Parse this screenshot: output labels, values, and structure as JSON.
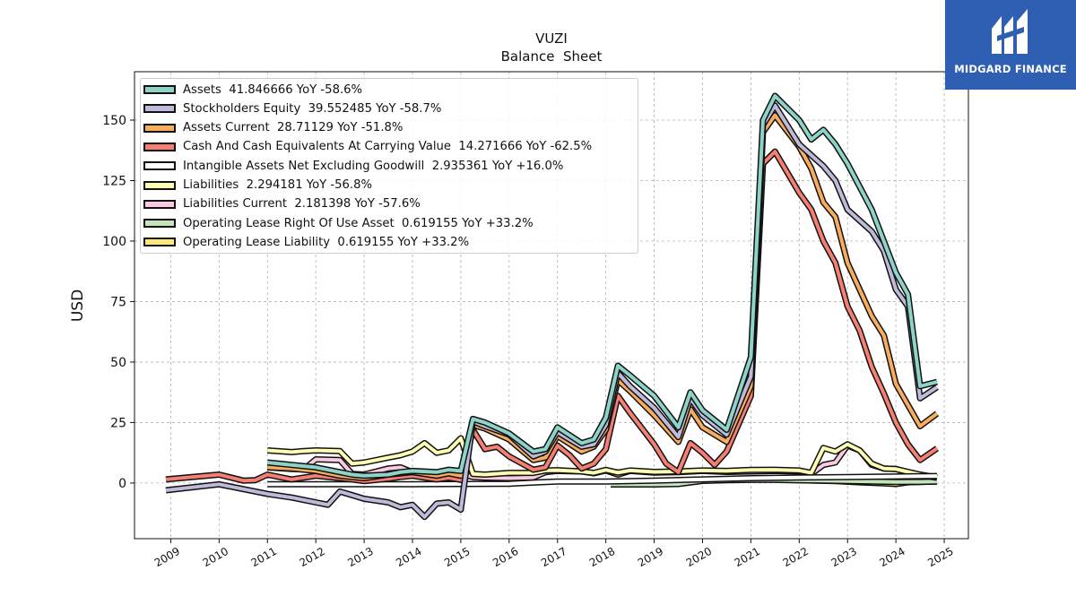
{
  "chart_data": {
    "type": "line",
    "title": "VUZI",
    "subtitle": "Balance  Sheet",
    "ylabel": "USD",
    "xlabel": "",
    "ylim": [
      -23,
      170
    ],
    "xlim": [
      2008.25,
      2025.5
    ],
    "yticks": [
      0,
      25,
      50,
      75,
      100,
      125,
      150
    ],
    "xticks": [
      "2009",
      "2010",
      "2011",
      "2012",
      "2013",
      "2014",
      "2015",
      "2016",
      "2017",
      "2018",
      "2019",
      "2020",
      "2021",
      "2022",
      "2023",
      "2024",
      "2025"
    ],
    "grid": true,
    "legend_position": "top-left",
    "series": [
      {
        "name": "Operating Lease Liability",
        "legend": "Operating Lease Liability  0.619155 YoY +33.2%",
        "color": "#ffe873",
        "x": [
          2019.0,
          2019.75,
          2020.5,
          2021.25,
          2022.0,
          2022.75,
          2023.25,
          2023.75,
          2024.0,
          2024.25,
          2024.85
        ],
        "y": [
          0.8,
          1.0,
          1.3,
          1.6,
          1.2,
          0.8,
          0.3,
          -0.1,
          -0.4,
          0.3,
          0.6
        ]
      },
      {
        "name": "Operating Lease Right Of Use Asset",
        "legend": "Operating Lease Right Of Use Asset  0.619155 YoY +33.2%",
        "color": "#c5e4bd",
        "x": [
          2018.1,
          2018.5,
          2019.0,
          2019.5,
          2020.0,
          2020.5,
          2021.0,
          2021.5,
          2022.0,
          2022.5,
          2023.0,
          2023.5,
          2024.0,
          2024.5,
          2024.85
        ],
        "y": [
          -0.6,
          -0.6,
          -0.6,
          -0.4,
          0.9,
          1.2,
          1.3,
          1.3,
          1.1,
          1.0,
          0.8,
          0.6,
          0.4,
          0.5,
          0.6
        ]
      },
      {
        "name": "Liabilities Current",
        "legend": "Liabilities Current  2.181398 YoY -57.6%",
        "color": "#fcc9e2",
        "x": [
          2011.0,
          2011.5,
          2011.75,
          2012.0,
          2012.5,
          2012.75,
          2013.0,
          2013.5,
          2013.75,
          2014.0,
          2014.5,
          2014.75,
          2015.0,
          2015.25,
          2015.5,
          2016.0,
          2016.5,
          2016.75,
          2017.0,
          2017.5,
          2017.75,
          2018.0,
          2018.25,
          2018.5,
          2019.0,
          2019.5,
          2020.0,
          2020.5,
          2021.0,
          2021.5,
          2022.0,
          2022.25,
          2022.5,
          2022.75,
          2023.0,
          2023.25,
          2023.5,
          2023.75,
          2024.0,
          2024.25,
          2024.5,
          2024.85
        ],
        "y": [
          6.5,
          5.8,
          5.6,
          9.8,
          9.5,
          3.8,
          3.5,
          6.0,
          6.5,
          4.5,
          4.2,
          4.0,
          3.8,
          2.5,
          2.2,
          2.0,
          2.3,
          4.5,
          5.0,
          4.8,
          4.0,
          5.2,
          3.5,
          5.0,
          4.3,
          4.5,
          5.0,
          4.6,
          4.8,
          5.0,
          4.8,
          3.8,
          7.5,
          8.5,
          15.5,
          13.5,
          7.5,
          6.0,
          5.8,
          4.5,
          3.3,
          2.2
        ]
      },
      {
        "name": "Liabilities",
        "legend": "Liabilities  2.294181 YoY -56.8%",
        "color": "#ffffb3",
        "x": [
          2011.0,
          2011.5,
          2011.75,
          2012.0,
          2012.5,
          2012.75,
          2013.0,
          2013.5,
          2013.75,
          2014.0,
          2014.25,
          2014.5,
          2014.75,
          2015.0,
          2015.25,
          2015.5,
          2016.0,
          2016.5,
          2016.75,
          2017.0,
          2017.5,
          2017.75,
          2018.0,
          2018.25,
          2018.5,
          2019.0,
          2019.5,
          2020.0,
          2020.5,
          2021.0,
          2021.5,
          2022.0,
          2022.25,
          2022.5,
          2022.75,
          2023.0,
          2023.25,
          2023.5,
          2023.75,
          2024.0,
          2024.25,
          2024.5,
          2024.85
        ],
        "y": [
          13.5,
          12.8,
          13.2,
          13.5,
          13.2,
          8.0,
          8.5,
          10.5,
          11.5,
          13.0,
          16.5,
          12.5,
          13.5,
          18.5,
          3.8,
          3.5,
          4.2,
          4.2,
          5.2,
          5.3,
          4.8,
          4.2,
          5.4,
          4.3,
          5.2,
          4.6,
          4.8,
          5.2,
          5.0,
          5.4,
          5.5,
          5.2,
          4.2,
          14.5,
          13.0,
          16.0,
          13.5,
          8.0,
          6.0,
          5.8,
          4.6,
          3.5,
          2.3
        ]
      },
      {
        "name": "Intangible Assets Net Excluding Goodwill",
        "legend": "Intangible Assets Net Excluding Goodwill  2.935361 YoY +16.0%",
        "color": "#ffffff",
        "x": [
          2011.0,
          2012.0,
          2013.0,
          2014.0,
          2015.0,
          2016.0,
          2016.5,
          2017.0,
          2018.0,
          2019.0,
          2020.0,
          2021.0,
          2022.0,
          2023.0,
          2024.0,
          2024.85
        ],
        "y": [
          -0.5,
          -0.5,
          -0.5,
          -0.5,
          -0.4,
          -0.3,
          0.2,
          0.6,
          0.6,
          1.0,
          1.5,
          2.0,
          2.3,
          2.5,
          2.7,
          2.9
        ]
      },
      {
        "name": "Cash And Cash Equivalents At Carrying Value",
        "legend": "Cash And Cash Equivalents At Carrying Value  14.271666 YoY -62.5%",
        "color": "#f47f72",
        "x": [
          2008.9,
          2010.0,
          2010.5,
          2010.75,
          2011.0,
          2011.5,
          2012.0,
          2012.5,
          2012.75,
          2013.0,
          2013.5,
          2013.75,
          2014.0,
          2014.5,
          2014.75,
          2015.0,
          2015.25,
          2015.5,
          2015.75,
          2016.0,
          2016.5,
          2016.75,
          2017.0,
          2017.25,
          2017.5,
          2017.75,
          2018.0,
          2018.25,
          2018.5,
          2019.0,
          2019.25,
          2019.5,
          2019.75,
          2020.0,
          2020.25,
          2020.5,
          2021.0,
          2021.25,
          2021.5,
          2022.0,
          2022.25,
          2022.5,
          2022.75,
          2023.0,
          2023.25,
          2023.5,
          2023.75,
          2024.0,
          2024.25,
          2024.5,
          2024.85
        ],
        "y": [
          1.5,
          3.5,
          1.0,
          1.2,
          3.5,
          1.5,
          3.0,
          2.0,
          1.5,
          0.8,
          1.8,
          2.5,
          3.0,
          1.5,
          2.2,
          1.3,
          22.0,
          14.0,
          15.0,
          11.0,
          5.5,
          6.5,
          15.5,
          11.5,
          6.0,
          8.0,
          14.0,
          36.0,
          29.0,
          16.0,
          8.0,
          4.5,
          16.5,
          12.5,
          7.5,
          13.0,
          36.0,
          132.0,
          137.0,
          120.0,
          113.0,
          100.0,
          91.0,
          73.0,
          63.0,
          48.0,
          37.0,
          25.0,
          16.0,
          9.5,
          14.3
        ]
      },
      {
        "name": "Assets Current",
        "legend": "Assets Current  28.71129 YoY -51.8%",
        "color": "#f8ad5e",
        "x": [
          2011.0,
          2011.5,
          2012.0,
          2012.5,
          2012.75,
          2013.0,
          2013.5,
          2013.75,
          2014.0,
          2014.5,
          2014.75,
          2015.0,
          2015.25,
          2015.5,
          2016.0,
          2016.5,
          2016.75,
          2017.0,
          2017.5,
          2017.75,
          2018.0,
          2018.25,
          2018.5,
          2019.0,
          2019.5,
          2019.75,
          2020.0,
          2020.5,
          2021.0,
          2021.25,
          2021.5,
          2022.0,
          2022.25,
          2022.5,
          2022.75,
          2023.0,
          2023.5,
          2023.75,
          2024.0,
          2024.5,
          2024.85
        ],
        "y": [
          6.5,
          6.0,
          5.0,
          3.0,
          2.5,
          2.0,
          3.5,
          4.0,
          4.5,
          3.0,
          4.0,
          3.0,
          24.0,
          22.5,
          18.0,
          9.5,
          10.5,
          19.5,
          13.0,
          15.0,
          22.0,
          42.5,
          38.0,
          28.0,
          17.0,
          30.5,
          23.0,
          17.0,
          40.0,
          145.0,
          152.0,
          139.0,
          130.0,
          116.0,
          110.0,
          91.0,
          69.0,
          61.0,
          41.0,
          23.5,
          28.7
        ]
      },
      {
        "name": "Stockholders Equity",
        "legend": "Stockholders Equity  39.552485 YoY -58.7%",
        "color": "#bebada",
        "x": [
          2008.9,
          2010.0,
          2010.5,
          2011.0,
          2011.5,
          2012.0,
          2012.25,
          2012.5,
          2012.75,
          2013.0,
          2013.5,
          2013.75,
          2014.0,
          2014.25,
          2014.5,
          2014.75,
          2015.0,
          2015.25,
          2015.5,
          2016.0,
          2016.5,
          2016.75,
          2017.0,
          2017.5,
          2017.75,
          2018.0,
          2018.25,
          2018.5,
          2019.0,
          2019.5,
          2019.75,
          2020.0,
          2020.5,
          2021.0,
          2021.25,
          2021.5,
          2022.0,
          2022.5,
          2022.75,
          2023.0,
          2023.5,
          2023.75,
          2024.0,
          2024.25,
          2024.5,
          2024.85
        ],
        "y": [
          -3.0,
          -0.5,
          -2.5,
          -4.5,
          -6.0,
          -8.0,
          -9.0,
          -3.5,
          -5.0,
          -6.5,
          -8.0,
          -10.0,
          -9.0,
          -14.0,
          -8.5,
          -8.0,
          -11.0,
          25.5,
          23.5,
          20.0,
          11.0,
          13.0,
          21.0,
          15.0,
          16.0,
          24.0,
          45.5,
          40.0,
          31.0,
          19.0,
          35.0,
          28.0,
          20.0,
          44.0,
          148.0,
          156.0,
          140.0,
          131.0,
          125.0,
          113.0,
          104.0,
          96.0,
          80.0,
          73.0,
          35.0,
          39.6
        ]
      },
      {
        "name": "Assets",
        "legend": "Assets  41.846666 YoY -58.6%",
        "color": "#8dd3c7",
        "x": [
          2011.0,
          2011.5,
          2012.0,
          2012.5,
          2012.75,
          2013.0,
          2013.5,
          2013.75,
          2014.0,
          2014.5,
          2014.75,
          2015.0,
          2015.25,
          2015.5,
          2016.0,
          2016.5,
          2016.75,
          2017.0,
          2017.5,
          2017.75,
          2018.0,
          2018.25,
          2018.5,
          2019.0,
          2019.5,
          2019.75,
          2020.0,
          2020.5,
          2021.0,
          2021.25,
          2021.5,
          2022.0,
          2022.25,
          2022.5,
          2022.75,
          2023.0,
          2023.5,
          2023.75,
          2024.0,
          2024.25,
          2024.5,
          2024.85
        ],
        "y": [
          8.5,
          7.5,
          6.5,
          4.5,
          3.5,
          3.0,
          3.5,
          4.5,
          5.0,
          4.5,
          5.5,
          5.0,
          26.5,
          25.0,
          20.5,
          13.0,
          14.0,
          23.0,
          16.5,
          18.0,
          27.0,
          48.5,
          44.5,
          36.0,
          23.0,
          37.5,
          30.0,
          22.0,
          52.0,
          150.0,
          160.0,
          150.0,
          142.0,
          146.0,
          140.0,
          132.0,
          113.0,
          100.0,
          87.0,
          78.0,
          40.0,
          41.8
        ]
      }
    ]
  },
  "brand": {
    "name": "MIDGARD FINANCE"
  }
}
